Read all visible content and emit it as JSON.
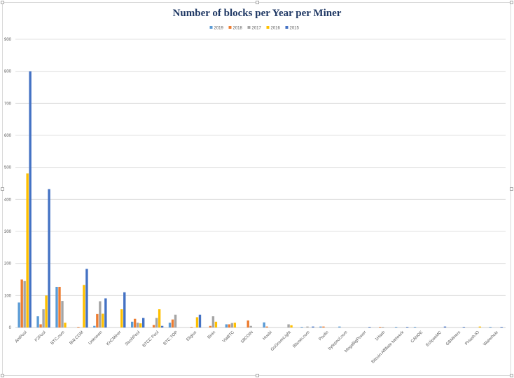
{
  "chart_data": {
    "type": "bar",
    "title": "Number of blocks per Year per Miner",
    "xlabel": "",
    "ylabel": "",
    "ylim": [
      0,
      900
    ],
    "yticks": [
      0,
      100,
      200,
      300,
      400,
      500,
      600,
      700,
      800,
      900
    ],
    "grid": true,
    "legend_position": "top",
    "categories": [
      "AntPool",
      "F2Pool",
      "BTC.com",
      "BW.COM",
      "Unknown",
      "KnCMiner",
      "SlushPool",
      "BTCC Pool",
      "BTC.TOP",
      "Eligius",
      "Bixin",
      "ViaBTC",
      "58COIN",
      "Huobi",
      "GoGreenLight",
      "Bitcoin.com",
      "Poolin",
      "bytepool.com",
      "MegaBigPower",
      "1Hash",
      "Bitcoin Affiliate Network",
      "CANOE",
      "EclipseMC",
      "GBMiners",
      "PHash.IO",
      "Waterhole"
    ],
    "series": [
      {
        "name": "2019",
        "color": "#5b9bd5",
        "values": [
          78,
          35,
          127,
          0,
          5,
          0,
          18,
          0,
          15,
          0,
          0,
          10,
          0,
          16,
          0,
          2,
          3,
          3,
          0,
          0,
          2,
          2,
          0,
          0,
          0,
          2
        ]
      },
      {
        "name": "2018",
        "color": "#ed7d31",
        "values": [
          150,
          10,
          127,
          2,
          42,
          0,
          27,
          8,
          25,
          2,
          5,
          10,
          22,
          3,
          0,
          0,
          3,
          0,
          0,
          2,
          0,
          0,
          0,
          0,
          0,
          0
        ]
      },
      {
        "name": "2017",
        "color": "#a5a5a5",
        "values": [
          145,
          57,
          83,
          0,
          82,
          0,
          15,
          30,
          40,
          0,
          35,
          14,
          5,
          0,
          10,
          3,
          0,
          0,
          0,
          2,
          0,
          0,
          0,
          0,
          0,
          0
        ]
      },
      {
        "name": "2016",
        "color": "#ffc000",
        "values": [
          481,
          100,
          15,
          133,
          43,
          57,
          13,
          57,
          0,
          32,
          18,
          15,
          0,
          0,
          7,
          0,
          0,
          0,
          0,
          0,
          0,
          0,
          0,
          0,
          3,
          0
        ]
      },
      {
        "name": "2015",
        "color": "#4472c4",
        "values": [
          800,
          432,
          0,
          183,
          91,
          110,
          30,
          5,
          0,
          40,
          0,
          0,
          0,
          0,
          0,
          3,
          0,
          0,
          2,
          0,
          2,
          0,
          3,
          2,
          0,
          2
        ]
      }
    ]
  }
}
